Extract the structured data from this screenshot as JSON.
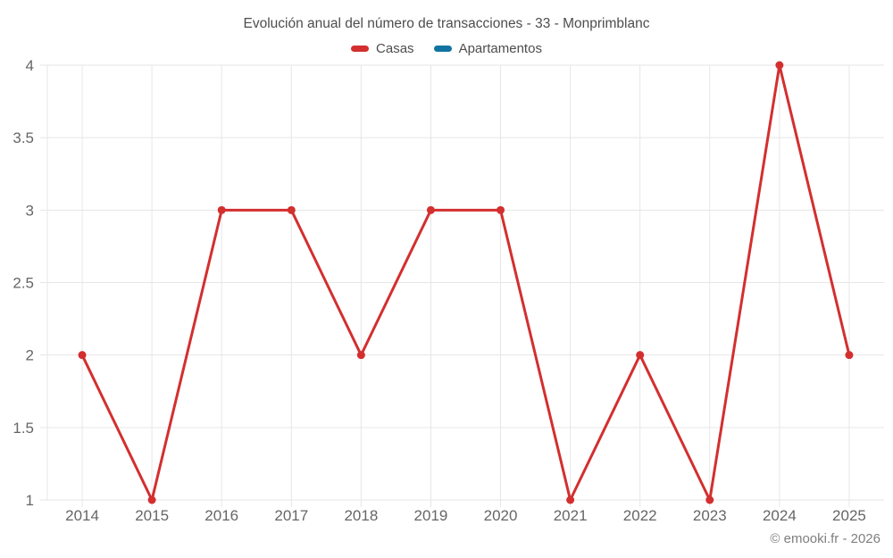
{
  "chart_data": {
    "type": "line",
    "title": "Evolución anual del número de transacciones - 33 - Monprimblanc",
    "categories": [
      "2014",
      "2015",
      "2016",
      "2017",
      "2018",
      "2019",
      "2020",
      "2021",
      "2022",
      "2023",
      "2024",
      "2025"
    ],
    "series": [
      {
        "name": "Casas",
        "color": "#d32f2f",
        "values": [
          2,
          1,
          3,
          3,
          2,
          3,
          3,
          1,
          2,
          1,
          4,
          2
        ]
      },
      {
        "name": "Apartamentos",
        "color": "#1273a2",
        "values": []
      }
    ],
    "xlabel": "",
    "ylabel": "",
    "ylim": [
      1,
      4
    ],
    "y_ticks": [
      4,
      3.5,
      3,
      2.5,
      2,
      1.5,
      1
    ],
    "grid": true,
    "legend_position": "top",
    "colors": {
      "grid_line": "#e6e6e6",
      "axis_tick_label": "#666666",
      "title_text": "#4d4d4d"
    }
  },
  "footer": {
    "credit": "© emooki.fr - 2026"
  }
}
